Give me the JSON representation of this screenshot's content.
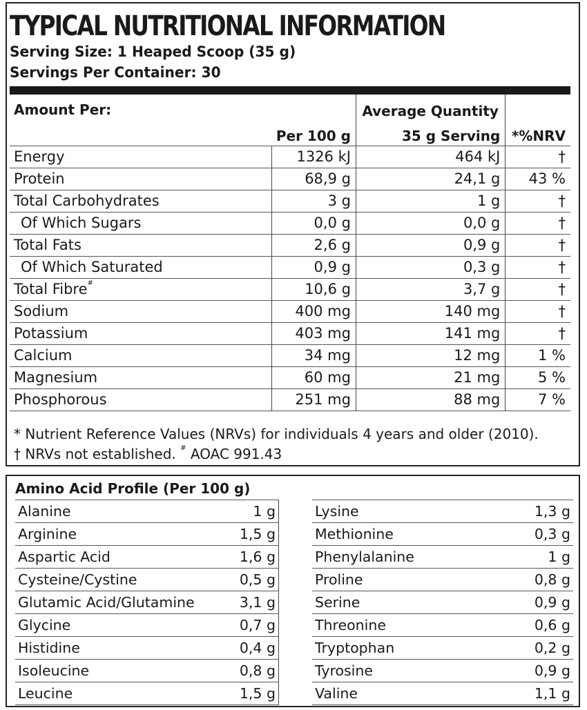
{
  "title": "TYPICAL NUTRITIONAL INFORMATION",
  "serving_size": "Serving Size: 1 Heaped Scoop (35 g)",
  "servings_per_container": "Servings Per Container: 30",
  "table_headers": {
    "amount_per": "Amount Per:",
    "per_100g": "Per 100 g",
    "average_quantity": "Average Quantity",
    "serving_35g": "35 g Serving",
    "nrv": "*%NRV"
  },
  "nutrients": [
    {
      "name": "Energy",
      "per100": "1326 kJ",
      "serving": "464 kJ",
      "nrv": "†"
    },
    {
      "name": "Protein",
      "per100": "68,9 g",
      "serving": "24,1 g",
      "nrv": "43 %"
    },
    {
      "name": "Total Carbohydrates",
      "per100": "3 g",
      "serving": "1 g",
      "nrv": "†"
    },
    {
      "name": "Of Which Sugars",
      "per100": "0,0 g",
      "serving": "0,0 g",
      "nrv": "†"
    },
    {
      "name": "Total Fats",
      "per100": "2,6 g",
      "serving": "0,9 g",
      "nrv": "†"
    },
    {
      "name": "Of Which Saturated",
      "per100": "0,9 g",
      "serving": "0,3 g",
      "nrv": "†"
    },
    {
      "name": "Total Fibre",
      "sup": "#",
      "per100": "10,6 g",
      "serving": "3,7 g",
      "nrv": "†"
    },
    {
      "name": "Sodium",
      "per100": "400 mg",
      "serving": "140 mg",
      "nrv": "†"
    },
    {
      "name": "Potassium",
      "per100": "403 mg",
      "serving": "141 mg",
      "nrv": "†"
    },
    {
      "name": "Calcium",
      "per100": "34 mg",
      "serving": "12 mg",
      "nrv": "1 %"
    },
    {
      "name": "Magnesium",
      "per100": "60 mg",
      "serving": "21 mg",
      "nrv": "5 %"
    },
    {
      "name": "Phosphorous",
      "per100": "251 mg",
      "serving": "88 mg",
      "nrv": "7 %"
    }
  ],
  "footnote_1": "* Nutrient Reference Values (NRVs) for individuals 4 years and older (2010).",
  "footnote_2_a": "† NRVs not established.",
  "footnote_2_sup": "#",
  "footnote_2_b": "AOAC 991.43",
  "amino_title": "Amino Acid Profile (Per 100 g)",
  "amino_left": [
    {
      "name": "Alanine",
      "value": "1 g"
    },
    {
      "name": "Arginine",
      "value": "1,5 g"
    },
    {
      "name": "Aspartic Acid",
      "value": "1,6 g"
    },
    {
      "name": "Cysteine/Cystine",
      "value": "0,5 g"
    },
    {
      "name": "Glutamic Acid/Glutamine",
      "value": "3,1 g"
    },
    {
      "name": "Glycine",
      "value": "0,7 g"
    },
    {
      "name": "Histidine",
      "value": "0,4 g"
    },
    {
      "name": "Isoleucine",
      "value": "0,8 g"
    },
    {
      "name": "Leucine",
      "value": "1,5 g"
    }
  ],
  "amino_right": [
    {
      "name": "Lysine",
      "value": "1,3 g"
    },
    {
      "name": "Methionine",
      "value": "0,3 g"
    },
    {
      "name": "Phenylalanine",
      "value": "1 g"
    },
    {
      "name": "Proline",
      "value": "0,8 g"
    },
    {
      "name": "Serine",
      "value": "0,9 g"
    },
    {
      "name": "Threonine",
      "value": "0,6 g"
    },
    {
      "name": "Tryptophan",
      "value": "0,2 g"
    },
    {
      "name": "Tyrosine",
      "value": "0,9 g"
    },
    {
      "name": "Valine",
      "value": "1,1 g"
    }
  ]
}
